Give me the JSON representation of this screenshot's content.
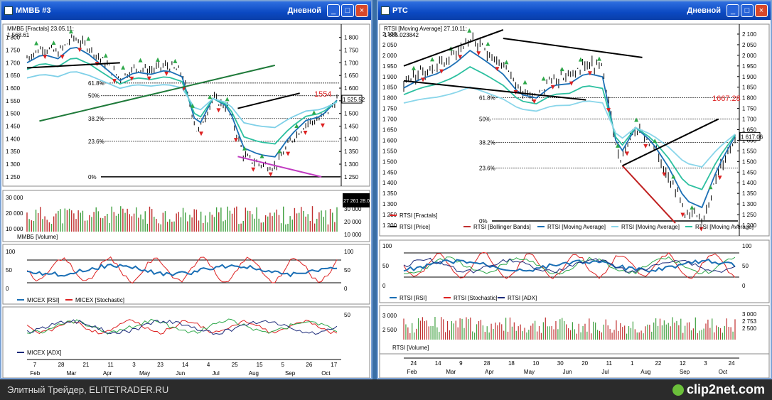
{
  "windows": {
    "left": {
      "title": "ММВБ #3",
      "mode": "Дневной"
    },
    "right": {
      "title": "РТС",
      "mode": "Дневной"
    }
  },
  "footer": {
    "text": "Элитный Трейдер, ELITETRADER.RU",
    "brand": "clip2net.com"
  },
  "left_panels": {
    "price_header": "ММВБ [Fractals] 23.05.11:",
    "price_header_value": "1 568.61",
    "price_ticks": [
      "1 800",
      "1 750",
      "1 700",
      "1 650",
      "1 600",
      "1 550",
      "1 500",
      "1 450",
      "1 400",
      "1 350",
      "1 300",
      "1 250"
    ],
    "fib_levels": [
      "61.8%",
      "50%",
      "38.2%",
      "23.6%",
      "0%"
    ],
    "callout": "1554",
    "current_value": "1 525.52",
    "volume_ticks": [
      "30 000",
      "20 000",
      "10 000"
    ],
    "volume_right": [
      "30 000",
      "20 000",
      "10 000"
    ],
    "volume_box": "27 261 28.070",
    "volume_legend": "ММВБ [Volume]",
    "osc1_ticks": [
      "100",
      "50",
      "0"
    ],
    "osc1_legend": [
      "MICEX [RSI]",
      "MICEX [Stochastic]"
    ],
    "osc2_ticks": [
      "50"
    ],
    "osc2_legend": "MICEX [ADX]",
    "date_days": [
      "7",
      "28",
      "21",
      "11",
      "3",
      "23",
      "14",
      "4",
      "25",
      "15",
      "5",
      "26",
      "17"
    ],
    "date_months": [
      "Feb",
      "Mar",
      "Apr",
      "May",
      "Jun",
      "Jul",
      "Aug",
      "Sep",
      "Oct"
    ]
  },
  "right_panels": {
    "price_header": "RTSI [Moving Average] 27.10.11:",
    "price_header_value": "1 685.023842",
    "price_ticks": [
      "2 100",
      "2 050",
      "2 000",
      "1 950",
      "1 900",
      "1 850",
      "1 800",
      "1 750",
      "1 700",
      "1 650",
      "1 600",
      "1 550",
      "1 500",
      "1 450",
      "1 400",
      "1 350",
      "1 300",
      "1 250",
      "1 200"
    ],
    "fib_levels": [
      "61.8%",
      "50%",
      "38.2%",
      "23.6%",
      "0%"
    ],
    "callout": "1667.28",
    "current_value": "1 617.06",
    "legend": [
      "RTSI [Fractals]",
      "RTSI [Price]",
      "RTSI [Bollinger Bands]",
      "RTSI [Moving Average]",
      "RTSI [Moving Average]",
      "RTSI [Moving Average]"
    ],
    "osc1_ticks": [
      "100",
      "50",
      "0"
    ],
    "osc1_legend": [
      "RTSI [RSI]",
      "RTSI [Stochastic]",
      "RTSI [ADX]"
    ],
    "volume_ticks": [
      "3 000",
      "2 500"
    ],
    "volume_right": [
      "3 000",
      "2 753",
      "2 500"
    ],
    "volume_legend": "RTSI [Volume]",
    "date_days": [
      "24",
      "14",
      "9",
      "28",
      "18",
      "10",
      "30",
      "20",
      "11",
      "1",
      "22",
      "12",
      "3",
      "24"
    ],
    "date_months": [
      "Feb",
      "Mar",
      "Apr",
      "May",
      "Jun",
      "Jul",
      "Aug",
      "Sep",
      "Oct"
    ]
  },
  "chart_data": [
    {
      "type": "line",
      "title": "ММВБ",
      "ylim": [
        1230,
        1830
      ],
      "x": [
        0,
        5,
        10,
        15,
        20,
        25,
        30,
        35,
        40,
        45,
        50,
        55,
        60,
        65,
        70,
        75,
        80,
        85,
        90,
        95,
        100
      ],
      "series": [
        {
          "values": [
            1720,
            1760,
            1740,
            1800,
            1760,
            1700,
            1640,
            1680,
            1670,
            1690,
            1660,
            1420,
            1560,
            1520,
            1330,
            1300,
            1290,
            1390,
            1460,
            1480,
            1555
          ]
        }
      ]
    },
    {
      "type": "line",
      "title": "RTSI",
      "ylim": [
        1170,
        2120
      ],
      "x": [
        0,
        5,
        10,
        15,
        20,
        25,
        30,
        35,
        40,
        45,
        50,
        55,
        60,
        65,
        70,
        75,
        80,
        85,
        90,
        95,
        100
      ],
      "series": [
        {
          "values": [
            1870,
            1920,
            1950,
            2000,
            2080,
            2020,
            1950,
            1840,
            1820,
            1890,
            1900,
            1960,
            1940,
            1500,
            1660,
            1580,
            1440,
            1260,
            1220,
            1450,
            1617
          ]
        }
      ]
    }
  ]
}
